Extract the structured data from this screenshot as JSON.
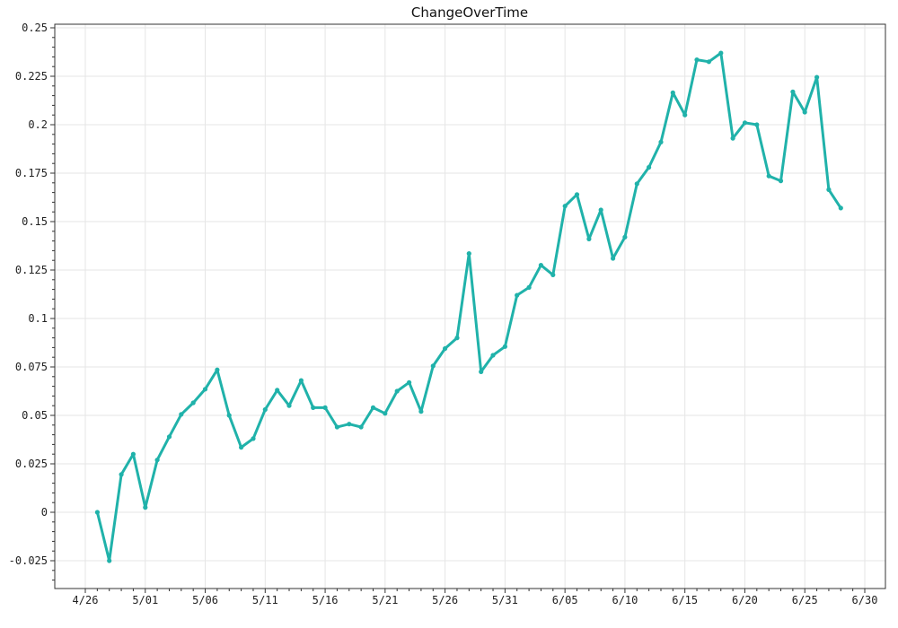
{
  "chart_data": {
    "type": "line",
    "title": "ChangeOverTime",
    "xlabel": "",
    "ylabel": "",
    "x_ticks": [
      "4/26",
      "5/01",
      "5/06",
      "5/11",
      "5/16",
      "5/21",
      "5/26",
      "5/31",
      "6/05",
      "6/10",
      "6/15",
      "6/20",
      "6/25",
      "6/30"
    ],
    "y_ticks": [
      "-0.025",
      "0",
      "0.025",
      "0.05",
      "0.075",
      "0.1",
      "0.125",
      "0.15",
      "0.175",
      "0.2",
      "0.225",
      "0.25"
    ],
    "ylim": [
      -0.04,
      0.255
    ],
    "xlim": [
      "4/26",
      "6/30"
    ],
    "grid": true,
    "legend": "none",
    "line_color": "#20b2aa",
    "series": [
      {
        "x": [
          "4/27",
          "4/28",
          "4/29",
          "4/30",
          "5/01",
          "5/02",
          "5/03",
          "5/04",
          "5/05",
          "5/06",
          "5/07",
          "5/08",
          "5/09",
          "5/10",
          "5/11",
          "5/12",
          "5/13",
          "5/14",
          "5/15",
          "5/16",
          "5/17",
          "5/18",
          "5/19",
          "5/20",
          "5/21",
          "5/22",
          "5/23",
          "5/24",
          "5/25",
          "5/26",
          "5/27",
          "5/28",
          "5/29",
          "5/30",
          "5/31",
          "6/01",
          "6/02",
          "6/03",
          "6/04",
          "6/05",
          "6/06",
          "6/07",
          "6/08",
          "6/09",
          "6/10",
          "6/11",
          "6/12",
          "6/13",
          "6/14",
          "6/15",
          "6/16",
          "6/17",
          "6/18",
          "6/19",
          "6/20",
          "6/21",
          "6/22",
          "6/23",
          "6/24",
          "6/25",
          "6/26",
          "6/27",
          "6/28"
        ],
        "values": [
          0.0,
          -0.025,
          0.0195,
          0.03,
          0.0025,
          0.027,
          0.039,
          0.0505,
          0.0565,
          0.0635,
          0.0735,
          0.05,
          0.0335,
          0.038,
          0.053,
          0.063,
          0.055,
          0.068,
          0.054,
          0.054,
          0.044,
          0.0455,
          0.044,
          0.054,
          0.051,
          0.0625,
          0.067,
          0.052,
          0.0755,
          0.0845,
          0.09,
          0.1335,
          0.0725,
          0.081,
          0.0855,
          0.112,
          0.116,
          0.1275,
          0.1225,
          0.158,
          0.164,
          0.141,
          0.156,
          0.131,
          0.142,
          0.1695,
          0.178,
          0.191,
          0.2165,
          0.205,
          0.2335,
          0.2325,
          0.237,
          0.193,
          0.201,
          0.2,
          0.1735,
          0.171,
          0.217,
          0.2065,
          0.2245,
          0.1665,
          0.157
        ]
      }
    ]
  }
}
